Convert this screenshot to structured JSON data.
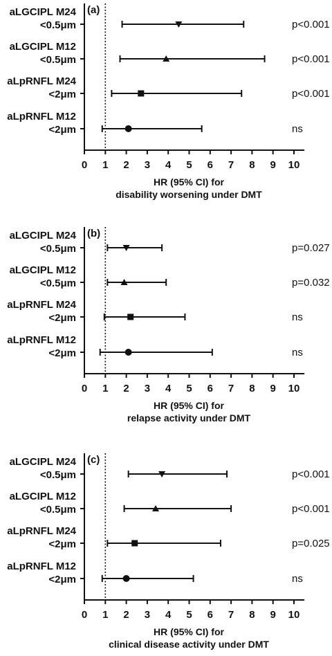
{
  "chart_data": [
    {
      "type": "forest",
      "panel_label": "(a)",
      "xlabel": [
        "HR (95% CI) for",
        "disability worsening under DMT"
      ],
      "xlim": [
        0,
        10.5
      ],
      "xticks": [
        "0",
        "1",
        "2",
        "3",
        "4",
        "5",
        "6",
        "7",
        "8",
        "9",
        "10"
      ],
      "reference_line": 1,
      "rows": [
        {
          "label": [
            "aLGCIPL M24",
            "<0.5μm"
          ],
          "hr": 4.5,
          "lo": 1.8,
          "hi": 7.6,
          "marker": "triangle-down",
          "p": "p<0.001"
        },
        {
          "label": [
            "aLGCIPL M12",
            "<0.5μm"
          ],
          "hr": 3.9,
          "lo": 1.7,
          "hi": 8.6,
          "marker": "triangle-up",
          "p": "p<0.001"
        },
        {
          "label": [
            "aLpRNFL M24",
            "<2μm"
          ],
          "hr": 2.7,
          "lo": 1.3,
          "hi": 7.5,
          "marker": "square",
          "p": "p<0.001"
        },
        {
          "label": [
            "aLpRNFL M12",
            "<2μm"
          ],
          "hr": 2.1,
          "lo": 0.85,
          "hi": 5.6,
          "marker": "circle",
          "p": "ns"
        }
      ]
    },
    {
      "type": "forest",
      "panel_label": "(b)",
      "xlabel": [
        "HR (95% CI) for",
        "relapse activity under DMT"
      ],
      "xlim": [
        0,
        10.5
      ],
      "xticks": [
        "0",
        "1",
        "2",
        "3",
        "4",
        "5",
        "6",
        "7",
        "8",
        "9",
        "10"
      ],
      "reference_line": 1,
      "rows": [
        {
          "label": [
            "aLGCIPL M24",
            "<0.5μm"
          ],
          "hr": 2.0,
          "lo": 1.1,
          "hi": 3.7,
          "marker": "triangle-down",
          "p": "p=0.027"
        },
        {
          "label": [
            "aLGCIPL M12",
            "<0.5μm"
          ],
          "hr": 1.9,
          "lo": 1.1,
          "hi": 3.9,
          "marker": "triangle-up",
          "p": "p=0.032"
        },
        {
          "label": [
            "aLpRNFL M24",
            "<2μm"
          ],
          "hr": 2.2,
          "lo": 0.95,
          "hi": 4.8,
          "marker": "square",
          "p": "ns"
        },
        {
          "label": [
            "aLpRNFL M12",
            "<2μm"
          ],
          "hr": 2.1,
          "lo": 0.75,
          "hi": 6.1,
          "marker": "circle",
          "p": "ns"
        }
      ]
    },
    {
      "type": "forest",
      "panel_label": "(c)",
      "xlabel": [
        "HR (95% CI) for",
        "clinical disease activity under DMT"
      ],
      "xlim": [
        0,
        10.5
      ],
      "xticks": [
        "0",
        "1",
        "2",
        "3",
        "4",
        "5",
        "6",
        "7",
        "8",
        "9",
        "10"
      ],
      "reference_line": 1,
      "rows": [
        {
          "label": [
            "aLGCIPL M24",
            "<0.5μm"
          ],
          "hr": 3.7,
          "lo": 2.1,
          "hi": 6.8,
          "marker": "triangle-down",
          "p": "p<0.001"
        },
        {
          "label": [
            "aLGCIPL M12",
            "<0.5μm"
          ],
          "hr": 3.4,
          "lo": 1.9,
          "hi": 7.0,
          "marker": "triangle-up",
          "p": "p<0.001"
        },
        {
          "label": [
            "aLpRNFL M24",
            "<2μm"
          ],
          "hr": 2.4,
          "lo": 1.1,
          "hi": 6.5,
          "marker": "square",
          "p": "p=0.025"
        },
        {
          "label": [
            "aLpRNFL M12",
            "<2μm"
          ],
          "hr": 2.0,
          "lo": 0.85,
          "hi": 5.2,
          "marker": "circle",
          "p": "ns"
        }
      ]
    }
  ]
}
